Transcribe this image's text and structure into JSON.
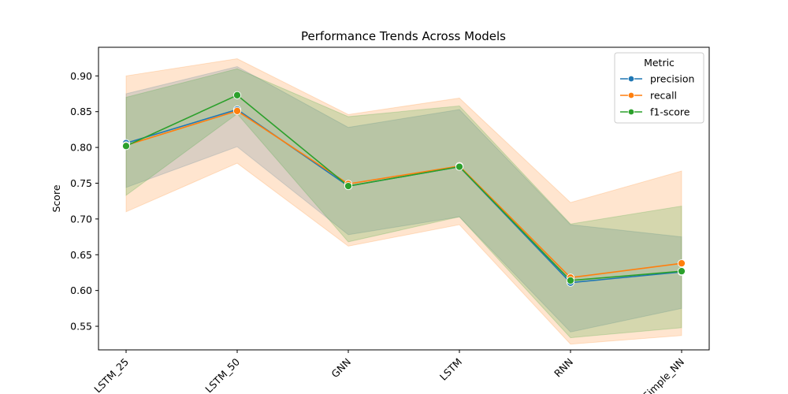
{
  "chart_data": {
    "type": "line",
    "title": "Performance Trends Across Models",
    "xlabel": "",
    "ylabel": "Score",
    "categories": [
      "LSTM_25",
      "LSTM_50",
      "GNN",
      "LSTM",
      "RNN",
      "Simple_NN"
    ],
    "ylim": [
      0.517,
      0.94
    ],
    "yticks": [
      "0.55",
      "0.60",
      "0.65",
      "0.70",
      "0.75",
      "0.80",
      "0.85",
      "0.90"
    ],
    "grid": false,
    "legend": {
      "title": "Metric",
      "placement": "top-right"
    },
    "series": [
      {
        "name": "precision",
        "color": "#1f77b4",
        "values": [
          0.806,
          0.853,
          0.746,
          0.773,
          0.611,
          0.626
        ],
        "ci_low": [
          0.744,
          0.801,
          0.678,
          0.703,
          0.542,
          0.575
        ],
        "ci_high": [
          0.875,
          0.913,
          0.828,
          0.853,
          0.692,
          0.675
        ]
      },
      {
        "name": "recall",
        "color": "#ff7f0e",
        "values": [
          0.803,
          0.851,
          0.749,
          0.774,
          0.618,
          0.638
        ],
        "ci_low": [
          0.71,
          0.778,
          0.662,
          0.692,
          0.525,
          0.537
        ],
        "ci_high": [
          0.9,
          0.924,
          0.846,
          0.869,
          0.723,
          0.767
        ]
      },
      {
        "name": "f1-score",
        "color": "#2ca02c",
        "values": [
          0.802,
          0.873,
          0.746,
          0.773,
          0.614,
          0.627
        ],
        "ci_low": [
          0.733,
          0.847,
          0.668,
          0.703,
          0.534,
          0.548
        ],
        "ci_high": [
          0.87,
          0.91,
          0.843,
          0.858,
          0.693,
          0.718
        ]
      }
    ]
  }
}
